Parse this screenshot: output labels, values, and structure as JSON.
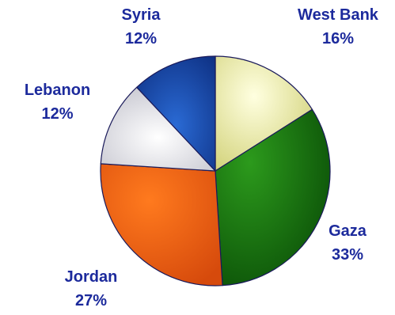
{
  "chart_data": {
    "type": "pie",
    "title": "",
    "slices": [
      {
        "label": "West Bank",
        "value": 16,
        "value_label": "16%",
        "color": "#e6e6a0"
      },
      {
        "label": "Gaza",
        "value": 33,
        "value_label": "33%",
        "color": "#1f7a12"
      },
      {
        "label": "Jordan",
        "value": 27,
        "value_label": "27%",
        "color": "#f05a14"
      },
      {
        "label": "Lebanon",
        "value": 12,
        "value_label": "12%",
        "color": "#e6e6ec"
      },
      {
        "label": "Syria",
        "value": 12,
        "value_label": "12%",
        "color": "#1d4fa8"
      }
    ],
    "start_angle_deg": 0,
    "direction": "clockwise",
    "legend": "none"
  },
  "colors": {
    "label_text": "#1c2a9c",
    "outline": "#1a1a5a"
  }
}
